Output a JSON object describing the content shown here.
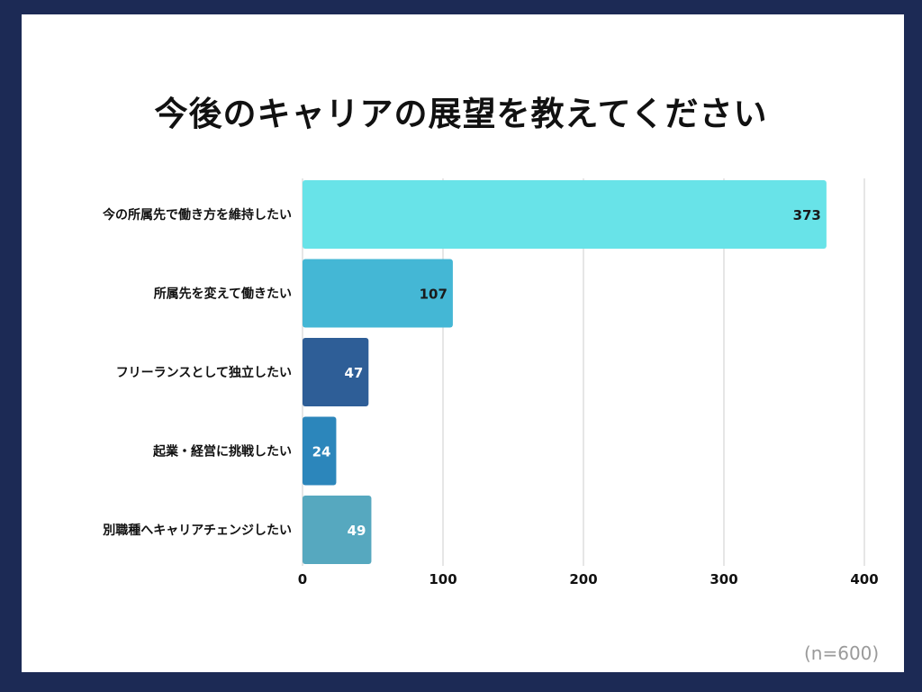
{
  "chart_data": {
    "type": "bar",
    "orientation": "horizontal",
    "title": "今後のキャリアの展望を教えてください",
    "categories": [
      "今の所属先で働き方を維持したい",
      "所属先を変えて働きたい",
      "フリーランスとして独立したい",
      "起業・経営に挑戦したい",
      "別職種へキャリアチェンジしたい"
    ],
    "values": [
      373,
      107,
      47,
      24,
      49
    ],
    "colors": [
      "#68e3e8",
      "#44b7d5",
      "#2e5e97",
      "#2c86bb",
      "#56a8bf"
    ],
    "value_label_colors": [
      "#1a1a1a",
      "#1a1a1a",
      "#ffffff",
      "#ffffff",
      "#ffffff"
    ],
    "x_ticks": [
      0,
      100,
      200,
      300,
      400
    ],
    "xlim": [
      0,
      400
    ],
    "grid": "vertical",
    "sample_note": "(n=600)"
  }
}
